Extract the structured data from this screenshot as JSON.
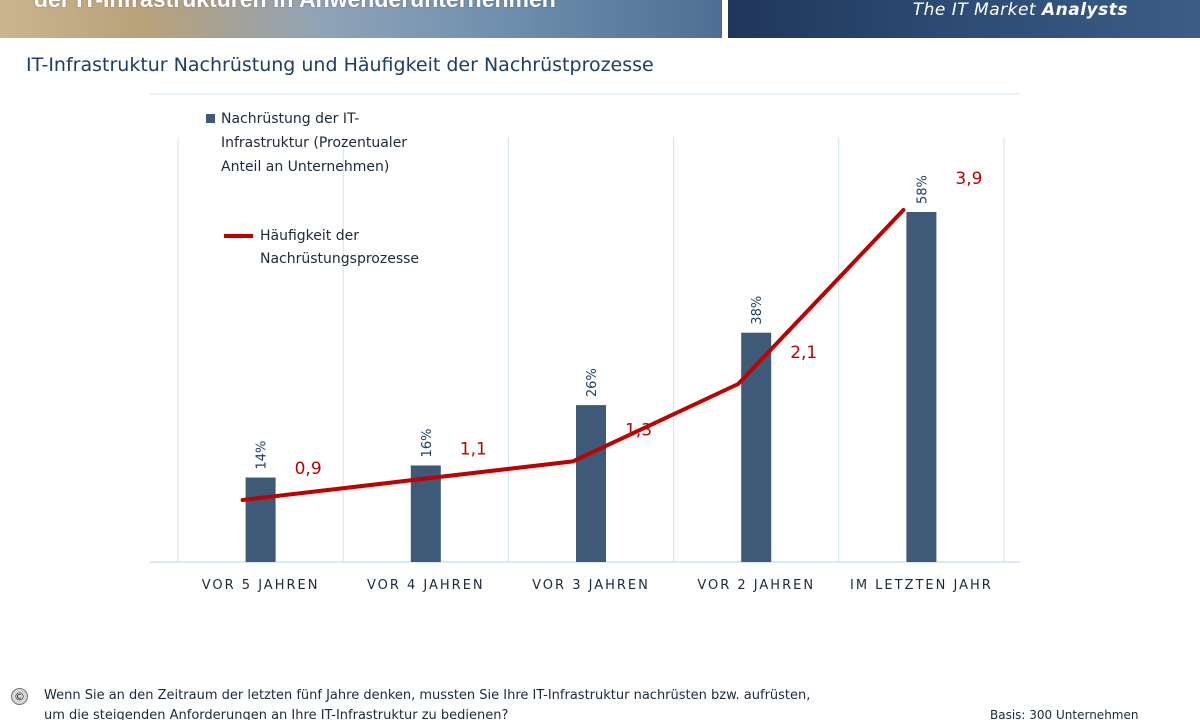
{
  "header": {
    "title": "der IT-Infrastrukturen in Anwenderunternehmen",
    "tagline_prefix": "The IT Market ",
    "tagline_bold": "Analysts"
  },
  "chart_title": "IT-Infrastruktur Nachrüstung und Häufigkeit der Nachrüstprozesse",
  "chart_data": {
    "type": "bar",
    "categories": [
      "VOR 5 JAHREN",
      "VOR 4 JAHREN",
      "VOR 3 JAHREN",
      "VOR 2 JAHREN",
      "IM LETZTEN JAHR"
    ],
    "series": [
      {
        "name": "Nachrüstung der IT-Infrastruktur (Prozentualer Anteil an Unternehmen)",
        "type": "bar",
        "values": [
          14,
          16,
          26,
          38,
          58
        ],
        "labels": [
          "14%",
          "16%",
          "26%",
          "38%",
          "58%"
        ],
        "color": "#3e5a78"
      },
      {
        "name": "Häufigkeit der Nachrüstungsprozesse",
        "type": "line",
        "values": [
          0.9,
          1.1,
          1.3,
          2.1,
          3.9
        ],
        "labels": [
          "0,9",
          "1,1",
          "1,3",
          "2,1",
          "3,9"
        ],
        "color": "#c00000"
      }
    ],
    "legend": {
      "placement": "top-left",
      "bar_lines": [
        "Nachrüstung der IT-",
        "Infrastruktur (Prozentualer",
        "Anteil an Unternehmen)"
      ],
      "line_lines": [
        "Häufigkeit der",
        "Nachrüstungsprozesse"
      ]
    },
    "grid": true
  },
  "footer": {
    "icon": "copyright-icon",
    "question_line1": "Wenn Sie an den Zeitraum der letzten fünf Jahre denken, mussten Sie Ihre IT-Infrastruktur nachrüsten bzw. aufrüsten,",
    "question_line2": "um die steigenden Anforderungen an Ihre IT-Infrastruktur zu bedienen?",
    "basis": "Basis: 300 Unternehmen"
  }
}
